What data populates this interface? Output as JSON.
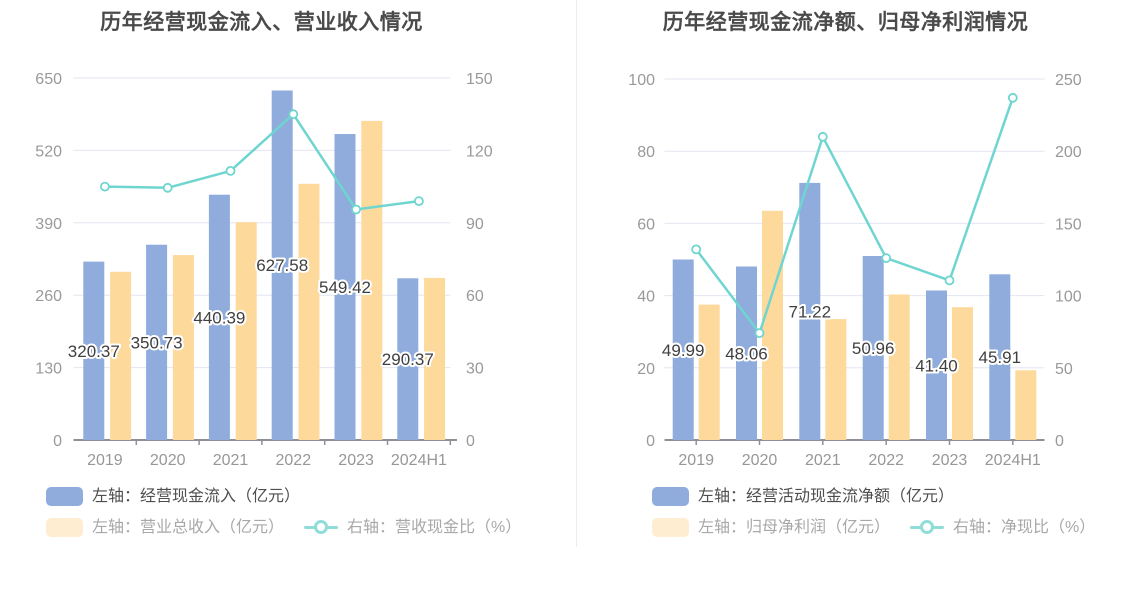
{
  "colors": {
    "bar_blue": "#8FACDC",
    "bar_orange": "#FDD99B",
    "line_teal": "#6FD5D0",
    "grid": "#E2E5F2",
    "axis": "#8E9097",
    "tick_text": "#999999",
    "title_text": "#4A4A4A",
    "value_label_text": "#3F3F3F",
    "legend_active_text": "#4E4E4E",
    "legend_muted_text": "#A8A8A8",
    "legend_orange_swatch": "#FFEDD1",
    "legend_line_icon": "#8FDCD8",
    "divider": "#ECECEC"
  },
  "chart_data": [
    {
      "type": "bar+line",
      "title": "历年经营现金流入、营业收入情况",
      "categories": [
        "2019",
        "2020",
        "2021",
        "2022",
        "2023",
        "2024H1"
      ],
      "left_axis": {
        "ticks": [
          0,
          130,
          260,
          390,
          520,
          650
        ],
        "max": 650
      },
      "right_axis": {
        "ticks": [
          0,
          30,
          60,
          90,
          120,
          150
        ],
        "max": 150
      },
      "grid": "on",
      "legend_position": "bottom-left",
      "series": [
        {
          "name": "左轴：经营现金流入（亿元）",
          "type": "bar",
          "axis": "left",
          "values": [
            320.37,
            350.73,
            440.39,
            627.58,
            549.42,
            290.37
          ],
          "data_labels": [
            "320.37",
            "350.73",
            "440.39",
            "627.58",
            "549.42",
            "290.37"
          ]
        },
        {
          "name": "左轴：营业总收入（亿元）",
          "type": "bar",
          "axis": "left",
          "values": [
            302,
            332,
            391,
            460,
            573,
            291
          ]
        },
        {
          "name": "右轴：营收现金比（%）",
          "type": "line",
          "axis": "right",
          "values": [
            105,
            104.5,
            111.5,
            135,
            95.5,
            99
          ]
        }
      ]
    },
    {
      "type": "bar+line",
      "title": "历年经营现金流净额、归母净利润情况",
      "categories": [
        "2019",
        "2020",
        "2021",
        "2022",
        "2023",
        "2024H1"
      ],
      "left_axis": {
        "ticks": [
          0,
          20,
          40,
          60,
          80,
          100
        ],
        "max": 100
      },
      "right_axis": {
        "ticks": [
          0,
          50,
          100,
          150,
          200,
          250
        ],
        "max": 250
      },
      "grid": "on",
      "legend_position": "bottom-left",
      "series": [
        {
          "name": "左轴：经营活动现金流净额（亿元）",
          "type": "bar",
          "axis": "left",
          "values": [
            49.99,
            48.06,
            71.22,
            50.96,
            41.4,
            45.91
          ],
          "data_labels": [
            "49.99",
            "48.06",
            "71.22",
            "50.96",
            "41.40",
            "45.91"
          ]
        },
        {
          "name": "左轴：归母净利润（亿元）",
          "type": "bar",
          "axis": "left",
          "values": [
            37.5,
            63.5,
            33.5,
            40.3,
            36.8,
            19.3
          ]
        },
        {
          "name": "右轴：净现比（%）",
          "type": "line",
          "axis": "right",
          "values": [
            132,
            74,
            210,
            126,
            110.5,
            237
          ]
        }
      ]
    }
  ]
}
